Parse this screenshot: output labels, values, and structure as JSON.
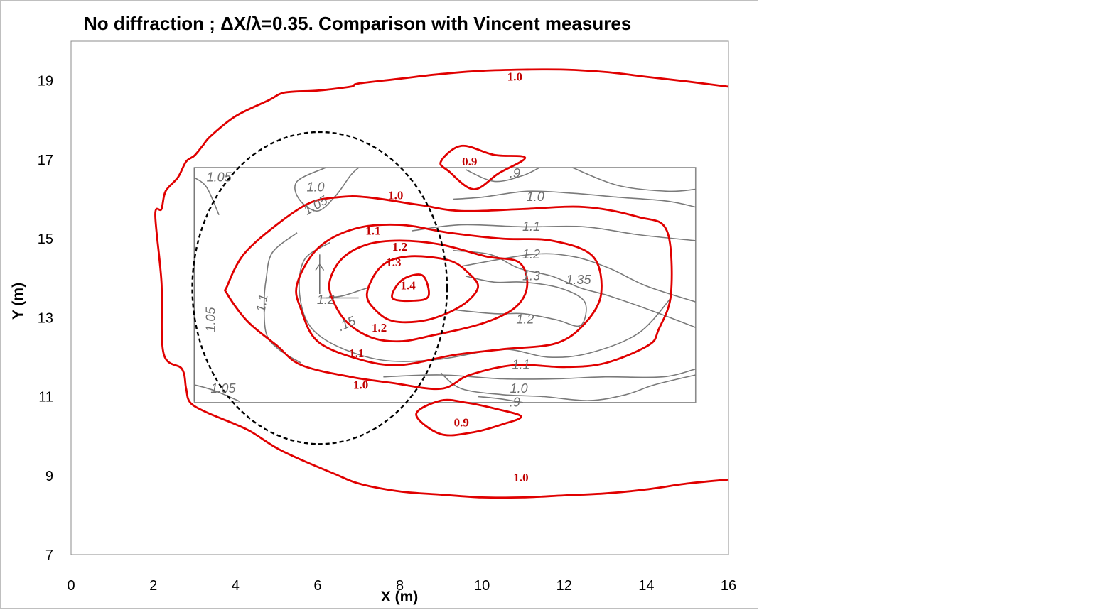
{
  "chart_data": {
    "type": "contour",
    "title": "No diffraction ; ΔX/λ=0.35. Comparison with Vincent measures",
    "xlabel": "X (m)",
    "ylabel": "Y (m)",
    "xlim": [
      0,
      16
    ],
    "ylim": [
      7,
      20
    ],
    "xticks": [
      "0",
      "2",
      "4",
      "6",
      "8",
      "10",
      "12",
      "14",
      "16"
    ],
    "yticks": [
      "7",
      "9",
      "11",
      "13",
      "15",
      "17",
      "19"
    ],
    "grid": false,
    "colors": {
      "computed": "#e00000",
      "measured": "#7a7a7a",
      "lens": "#000000"
    },
    "computed_contours": [
      {
        "level": "1.0",
        "position": "outer-top",
        "points": [
          [
            16.0,
            18.85
          ],
          [
            15.0,
            18.98
          ],
          [
            14.0,
            19.1
          ],
          [
            13.0,
            19.22
          ],
          [
            12.0,
            19.28
          ],
          [
            11.0,
            19.28
          ],
          [
            10.0,
            19.25
          ],
          [
            9.0,
            19.17
          ],
          [
            8.0,
            19.05
          ],
          [
            7.0,
            18.93
          ],
          [
            6.8,
            18.85
          ],
          [
            6.0,
            18.75
          ],
          [
            5.2,
            18.7
          ],
          [
            4.8,
            18.5
          ],
          [
            4.0,
            18.1
          ],
          [
            3.4,
            17.6
          ],
          [
            3.2,
            17.35
          ],
          [
            3.0,
            17.1
          ],
          [
            2.8,
            16.95
          ],
          [
            2.6,
            16.55
          ],
          [
            2.3,
            16.2
          ],
          [
            2.2,
            15.75
          ],
          [
            2.05,
            15.6
          ],
          [
            2.2,
            13.9
          ],
          [
            2.25,
            12.1
          ],
          [
            2.7,
            11.7
          ],
          [
            2.8,
            11.2
          ],
          [
            2.9,
            10.85
          ],
          [
            3.3,
            10.6
          ],
          [
            4.0,
            10.3
          ],
          [
            4.4,
            10.1
          ],
          [
            5.0,
            9.7
          ],
          [
            5.6,
            9.4
          ],
          [
            6.4,
            9.05
          ],
          [
            7.0,
            8.8
          ],
          [
            8.0,
            8.6
          ],
          [
            9.0,
            8.52
          ],
          [
            10.0,
            8.45
          ],
          [
            11.0,
            8.45
          ],
          [
            12.0,
            8.5
          ],
          [
            13.0,
            8.55
          ],
          [
            14.0,
            8.65
          ],
          [
            15.0,
            8.8
          ],
          [
            16.0,
            8.9
          ]
        ]
      },
      {
        "level": "1.0",
        "position": "inner",
        "points": [
          [
            3.8,
            13.8
          ],
          [
            4.2,
            14.6
          ],
          [
            5.0,
            15.35
          ],
          [
            5.8,
            15.9
          ],
          [
            6.5,
            16.05
          ],
          [
            7.2,
            16.05
          ],
          [
            8.5,
            15.85
          ],
          [
            9.5,
            15.7
          ],
          [
            11.0,
            15.75
          ],
          [
            12.5,
            15.8
          ],
          [
            13.8,
            15.55
          ],
          [
            14.5,
            15.2
          ],
          [
            14.6,
            13.6
          ],
          [
            14.3,
            12.7
          ],
          [
            14.05,
            12.3
          ],
          [
            13.0,
            11.85
          ],
          [
            12.0,
            11.75
          ],
          [
            10.8,
            11.8
          ],
          [
            9.7,
            11.55
          ],
          [
            9.0,
            11.2
          ],
          [
            7.8,
            11.35
          ],
          [
            6.8,
            11.5
          ],
          [
            5.6,
            11.8
          ],
          [
            5.0,
            12.3
          ],
          [
            4.3,
            12.9
          ],
          [
            3.8,
            13.6
          ]
        ]
      },
      {
        "level": "1.1",
        "position": "inner",
        "points": [
          [
            5.5,
            13.85
          ],
          [
            6.0,
            14.75
          ],
          [
            6.9,
            15.25
          ],
          [
            8.0,
            15.35
          ],
          [
            9.2,
            15.15
          ],
          [
            10.5,
            15.0
          ],
          [
            11.7,
            14.95
          ],
          [
            12.7,
            14.55
          ],
          [
            12.9,
            13.6
          ],
          [
            12.5,
            12.85
          ],
          [
            11.8,
            12.35
          ],
          [
            10.5,
            12.2
          ],
          [
            9.3,
            12.05
          ],
          [
            8.0,
            11.8
          ],
          [
            7.0,
            11.95
          ],
          [
            6.0,
            12.4
          ],
          [
            5.6,
            13.2
          ]
        ]
      },
      {
        "level": "1.2",
        "position": "inner",
        "points": [
          [
            6.3,
            13.95
          ],
          [
            6.6,
            14.5
          ],
          [
            7.2,
            14.85
          ],
          [
            8.0,
            14.95
          ],
          [
            9.0,
            14.85
          ],
          [
            10.1,
            14.55
          ],
          [
            10.9,
            14.4
          ],
          [
            11.1,
            13.8
          ],
          [
            10.8,
            13.25
          ],
          [
            10.0,
            12.85
          ],
          [
            8.8,
            12.55
          ],
          [
            8.0,
            12.4
          ],
          [
            7.3,
            12.5
          ],
          [
            6.7,
            12.9
          ],
          [
            6.35,
            13.5
          ]
        ]
      },
      {
        "level": "1.3",
        "position": "inner",
        "points": [
          [
            7.2,
            13.6
          ],
          [
            7.55,
            14.3
          ],
          [
            8.2,
            14.55
          ],
          [
            9.2,
            14.45
          ],
          [
            9.7,
            14.1
          ],
          [
            9.9,
            13.75
          ],
          [
            9.5,
            13.3
          ],
          [
            8.7,
            12.95
          ],
          [
            7.9,
            12.9
          ],
          [
            7.45,
            13.15
          ]
        ]
      },
      {
        "level": "1.4",
        "position": "inner",
        "points": [
          [
            7.82,
            13.5
          ],
          [
            8.05,
            13.95
          ],
          [
            8.55,
            14.07
          ],
          [
            8.7,
            13.55
          ],
          [
            8.35,
            13.43
          ]
        ]
      },
      {
        "level": "0.9",
        "position": "upper",
        "points": [
          [
            9.0,
            16.95
          ],
          [
            9.5,
            17.35
          ],
          [
            10.3,
            17.12
          ],
          [
            11.05,
            17.05
          ],
          [
            10.4,
            16.65
          ],
          [
            9.8,
            16.25
          ],
          [
            9.2,
            16.7
          ]
        ]
      },
      {
        "level": "0.9",
        "position": "lower",
        "points": [
          [
            8.4,
            10.55
          ],
          [
            9.0,
            10.9
          ],
          [
            9.6,
            10.85
          ],
          [
            10.3,
            10.7
          ],
          [
            10.95,
            10.5
          ],
          [
            10.5,
            10.3
          ],
          [
            9.8,
            10.1
          ],
          [
            9.0,
            10.05
          ]
        ]
      }
    ],
    "measured_contours": [
      {
        "level": "1.05",
        "position": "left",
        "points": [
          [
            3.0,
            16.8
          ],
          [
            3.0,
            16.5
          ],
          [
            3.0,
            15.5
          ],
          [
            3.0,
            14.5
          ],
          [
            3.0,
            13.5
          ],
          [
            3.0,
            12.5
          ],
          [
            3.0,
            11.5
          ],
          [
            3.0,
            10.9
          ]
        ]
      }
    ],
    "measurement_area": {
      "x": [
        3.0,
        15.2
      ],
      "y": [
        10.85,
        16.8
      ]
    },
    "labels": {
      "computed": [
        "1.0",
        "1.0",
        "1.1",
        "1.2",
        "1.3",
        "1.4",
        "1.2",
        "1.1",
        "1.0",
        "0.9",
        "0.9",
        "1.0"
      ],
      "measured": [
        "1.05",
        "1.0",
        "1.05",
        "1.0",
        ".9",
        "1.1",
        "1.2",
        "1.3",
        "1.35",
        "1.2",
        "1.1",
        "1.0",
        ".9",
        "1.05",
        "1.1",
        "1.05",
        "1.2",
        ".15"
      ]
    }
  }
}
